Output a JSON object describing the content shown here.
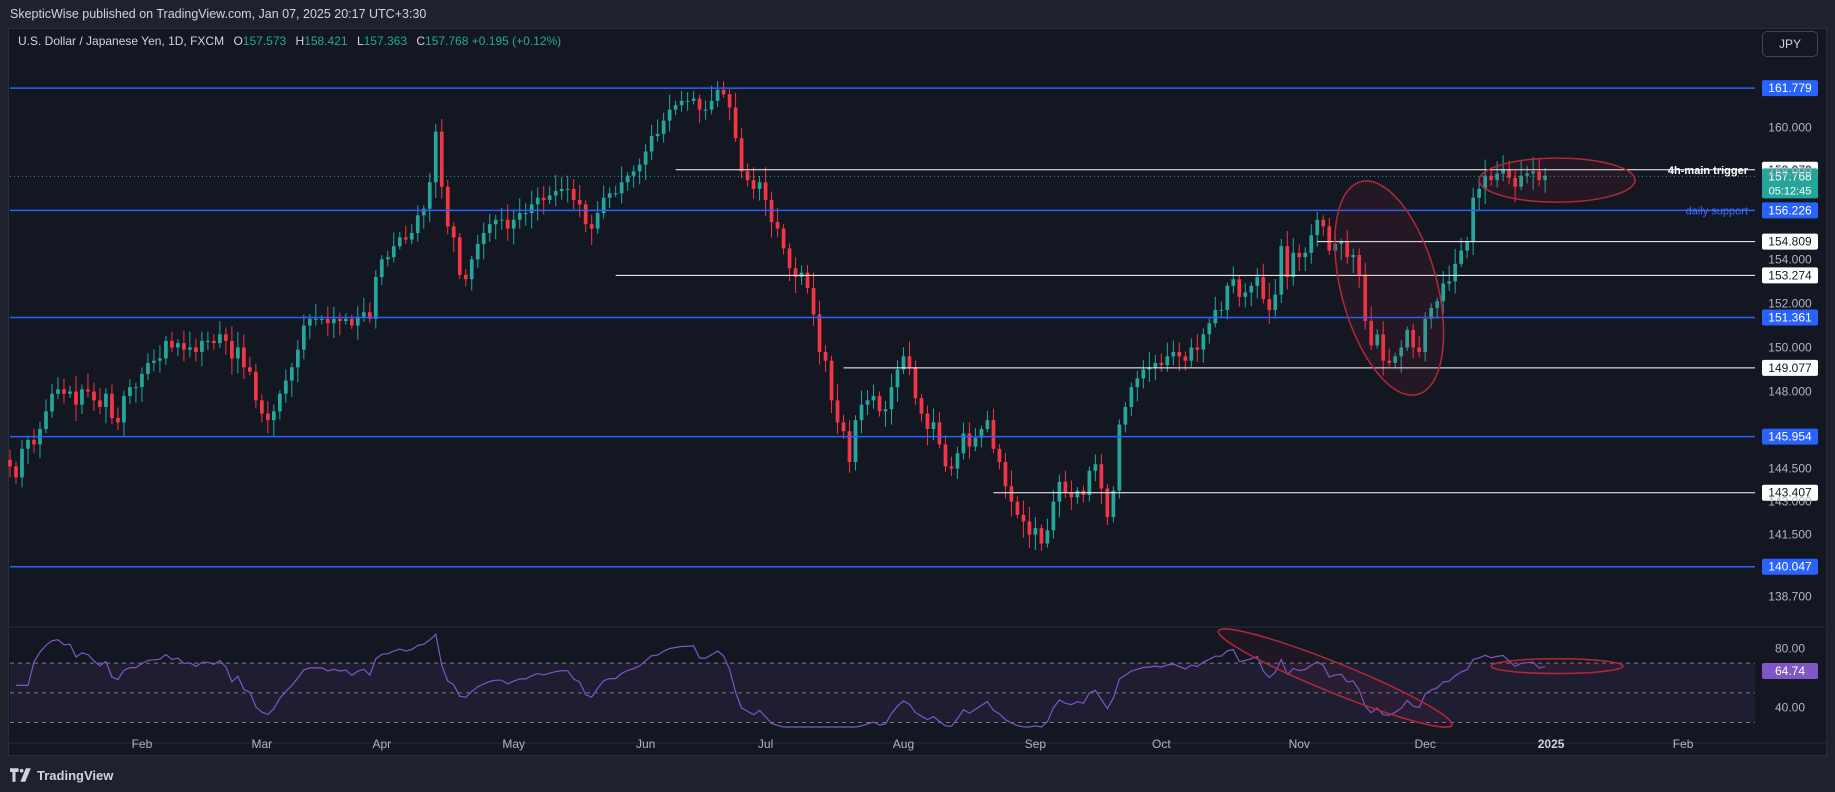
{
  "header": {
    "published": "SkepticWise published on TradingView.com, Jan 07, 2025 20:17 UTC+3:30"
  },
  "legend": {
    "symbol": "U.S. Dollar / Japanese Yen, 1D, FXCM",
    "o_label": "O",
    "o_value": "157.573",
    "h_label": "H",
    "h_value": "158.421",
    "l_label": "L",
    "l_value": "157.363",
    "c_label": "C",
    "c_value": "157.768",
    "change": "+0.195 (+0.12%)"
  },
  "currency_button": "JPY",
  "footer": {
    "brand": "TradingView"
  },
  "colors": {
    "background": "#131722",
    "up": "#26a69a",
    "down": "#f23645",
    "level_line": "#2962ff",
    "white_line": "#ffffff",
    "annotation": "#b2283a",
    "rsi_line": "#7e57c2"
  },
  "chart_data": [
    {
      "type": "candlestick",
      "ylim": [
        137.4,
        162.6
      ],
      "price_ticks": [
        "160.000",
        "158.000",
        "154.000",
        "152.000",
        "150.000",
        "148.000",
        "144.500",
        "143.000",
        "141.500",
        "138.700"
      ],
      "time_labels": [
        {
          "label": "Feb",
          "day": 22
        },
        {
          "label": "Mar",
          "day": 42
        },
        {
          "label": "Apr",
          "day": 62
        },
        {
          "label": "May",
          "day": 84
        },
        {
          "label": "Jun",
          "day": 106
        },
        {
          "label": "Jul",
          "day": 126
        },
        {
          "label": "Aug",
          "day": 149
        },
        {
          "label": "Sep",
          "day": 171
        },
        {
          "label": "Oct",
          "day": 192
        },
        {
          "label": "Nov",
          "day": 215
        },
        {
          "label": "Dec",
          "day": 236
        },
        {
          "label": "2025",
          "day": 257
        },
        {
          "label": "Feb",
          "day": 279
        }
      ],
      "x_domain": [
        0,
        291
      ],
      "current_price": {
        "value": 157.768,
        "label": "157.768",
        "countdown": "05:12:45"
      },
      "horizontal_levels": [
        {
          "price": 161.779,
          "label": "161.779",
          "style": "blue",
          "from_day": 0
        },
        {
          "price": 156.226,
          "label": "156.226",
          "style": "blue",
          "from_day": 0,
          "note": "daily support"
        },
        {
          "price": 151.361,
          "label": "151.361",
          "style": "blue",
          "from_day": 0
        },
        {
          "price": 145.954,
          "label": "145.954",
          "style": "blue",
          "from_day": 0
        },
        {
          "price": 140.047,
          "label": "140.047",
          "style": "blue",
          "from_day": 0
        },
        {
          "price": 158.07,
          "label": "158.070",
          "style": "white",
          "from_day": 111,
          "note": "4h-main trigger"
        },
        {
          "price": 154.809,
          "label": "154.809",
          "style": "white",
          "from_day": 218
        },
        {
          "price": 153.274,
          "label": "153.274",
          "style": "white",
          "from_day": 101
        },
        {
          "price": 149.077,
          "label": "149.077",
          "style": "white",
          "from_day": 139
        },
        {
          "price": 143.407,
          "label": "143.407",
          "style": "white",
          "from_day": 164
        }
      ],
      "annotations": [
        {
          "shape": "ellipse",
          "center_day": 230,
          "center_price": 152.7,
          "rx_days": 8,
          "ry_price": 5.0,
          "rotate": -15
        },
        {
          "shape": "ellipse",
          "center_day": 258,
          "center_price": 157.6,
          "rx_days": 13,
          "ry_price": 1.0,
          "rotate": 0
        }
      ],
      "closes": [
        144.6,
        144.1,
        145.4,
        145.8,
        145.6,
        146.3,
        147.1,
        147.9,
        148.1,
        147.9,
        148.0,
        147.4,
        148.1,
        148.0,
        147.6,
        147.3,
        147.9,
        146.8,
        146.6,
        147.8,
        148.2,
        148.2,
        148.8,
        149.3,
        149.4,
        149.5,
        150.3,
        150.0,
        150.2,
        149.9,
        150.0,
        149.8,
        150.3,
        150.3,
        150.2,
        150.6,
        150.3,
        149.5,
        150.0,
        149.1,
        148.9,
        147.6,
        147.0,
        146.7,
        147.1,
        147.9,
        148.5,
        149.1,
        149.9,
        151.0,
        151.3,
        151.3,
        151.3,
        151.1,
        151.3,
        151.2,
        151.3,
        151.0,
        151.4,
        151.6,
        151.3,
        153.2,
        154.0,
        154.1,
        154.6,
        155.0,
        154.9,
        155.2,
        156.0,
        156.3,
        157.5,
        159.8,
        157.3,
        155.5,
        155.0,
        153.3,
        153.1,
        154.0,
        154.7,
        155.2,
        155.6,
        155.8,
        155.8,
        155.4,
        155.8,
        156.1,
        156.1,
        156.5,
        156.8,
        156.7,
        156.9,
        157.1,
        157.2,
        157.2,
        156.7,
        156.5,
        155.6,
        155.4,
        156.1,
        156.8,
        157.0,
        157.0,
        157.5,
        157.8,
        158.0,
        158.3,
        158.9,
        159.6,
        159.7,
        160.3,
        160.8,
        161.0,
        161.2,
        161.2,
        161.3,
        160.8,
        160.8,
        161.2,
        161.7,
        161.5,
        160.9,
        159.5,
        158.0,
        157.6,
        157.2,
        157.5,
        156.7,
        155.7,
        155.4,
        154.5,
        153.6,
        153.2,
        153.4,
        152.7,
        151.5,
        149.8,
        149.4,
        147.6,
        146.6,
        146.2,
        144.8,
        146.7,
        147.4,
        147.6,
        147.8,
        147.1,
        147.2,
        148.2,
        149.0,
        149.6,
        149.1,
        147.7,
        147.0,
        146.3,
        146.6,
        145.6,
        144.6,
        144.5,
        145.2,
        146.1,
        145.5,
        145.9,
        146.3,
        146.7,
        145.4,
        144.8,
        143.7,
        143.0,
        142.4,
        142.1,
        141.5,
        141.8,
        141.1,
        141.7,
        143.0,
        143.9,
        143.4,
        143.2,
        143.5,
        143.3,
        144.4,
        144.7,
        143.6,
        142.3,
        143.5,
        146.5,
        147.3,
        148.2,
        148.6,
        149.0,
        149.1,
        149.3,
        149.2,
        149.6,
        149.8,
        149.6,
        149.4,
        150.0,
        149.9,
        150.6,
        151.1,
        151.7,
        151.7,
        152.8,
        153.1,
        152.3,
        152.5,
        152.8,
        153.2,
        152.2,
        151.7,
        152.4,
        154.6,
        153.2,
        154.3,
        154.1,
        154.3,
        155.1,
        155.8,
        155.5,
        154.4,
        154.7,
        154.8,
        154.1,
        154.2,
        153.3,
        151.2,
        150.1,
        150.6,
        149.4,
        149.3,
        149.6,
        150.0,
        150.8,
        150.0,
        149.8,
        151.3,
        151.8,
        152.1,
        152.9,
        153.0,
        153.8,
        154.4,
        154.8,
        156.8,
        157.2,
        157.8,
        157.6,
        157.9,
        158.1,
        157.7,
        157.3,
        157.8,
        157.9,
        158.0,
        157.6,
        157.8
      ],
      "rsi": {
        "value_label": "64.74",
        "ylim": [
          27,
          93
        ],
        "ticks": [
          "80.00",
          "40.00"
        ],
        "overbought": 70,
        "oversold": 30,
        "midline": 50,
        "annotations": [
          {
            "shape": "ellipse",
            "center_day": 221,
            "center_value": 60,
            "rx_days": 21,
            "ry_value": 10,
            "rotate": 22
          },
          {
            "shape": "ellipse",
            "center_day": 258,
            "center_value": 68,
            "rx_days": 11,
            "ry_value": 5,
            "rotate": 0
          }
        ]
      }
    }
  ]
}
